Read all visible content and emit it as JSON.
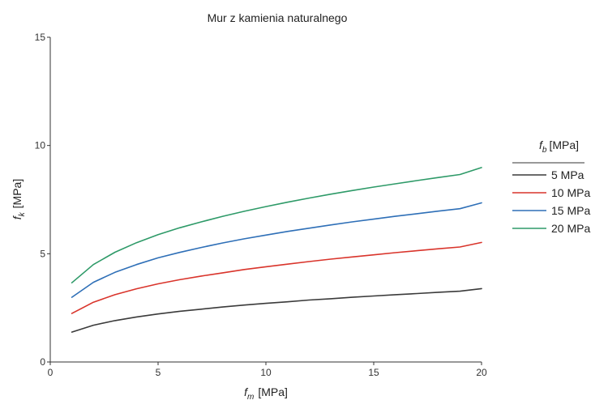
{
  "chart_data": {
    "type": "line",
    "title": "Mur z kamienia naturalnego",
    "xlabel": {
      "symbol": "f",
      "sub": "m",
      "unit": "[MPa]"
    },
    "ylabel": {
      "symbol": "f",
      "sub": "k",
      "unit": "[MPa]"
    },
    "xlim": [
      0,
      20
    ],
    "ylim": [
      0,
      15
    ],
    "xticks": [
      0,
      5,
      10,
      15,
      20
    ],
    "yticks": [
      0,
      5,
      10,
      15
    ],
    "grid": false,
    "legend": {
      "placement": "right",
      "title": {
        "symbol": "f",
        "sub": "b",
        "unit": "[MPa]"
      }
    },
    "x": [
      1,
      2,
      3,
      4,
      5,
      6,
      7,
      8,
      9,
      10,
      11,
      12,
      13,
      14,
      15,
      16,
      17,
      18,
      19,
      20
    ],
    "series": [
      {
        "name": "5 MPa",
        "color": "#3a3a3a",
        "values": [
          1.38,
          1.7,
          1.91,
          2.08,
          2.22,
          2.34,
          2.44,
          2.54,
          2.63,
          2.71,
          2.78,
          2.86,
          2.92,
          2.99,
          3.05,
          3.11,
          3.16,
          3.22,
          3.27,
          3.39
        ]
      },
      {
        "name": "10 MPa",
        "color": "#d9342b",
        "values": [
          2.24,
          2.76,
          3.11,
          3.38,
          3.61,
          3.8,
          3.97,
          4.12,
          4.27,
          4.4,
          4.52,
          4.64,
          4.75,
          4.85,
          4.95,
          5.05,
          5.14,
          5.23,
          5.31,
          5.52
        ]
      },
      {
        "name": "15 MPa",
        "color": "#2e6fb7",
        "values": [
          2.99,
          3.68,
          4.14,
          4.5,
          4.81,
          5.06,
          5.29,
          5.5,
          5.69,
          5.86,
          6.03,
          6.18,
          6.33,
          6.47,
          6.6,
          6.73,
          6.85,
          6.97,
          7.08,
          7.35
        ]
      },
      {
        "name": "20 MPa",
        "color": "#2e9a68",
        "values": [
          3.66,
          4.5,
          5.07,
          5.51,
          5.88,
          6.2,
          6.47,
          6.73,
          6.96,
          7.18,
          7.38,
          7.57,
          7.75,
          7.92,
          8.08,
          8.23,
          8.38,
          8.52,
          8.66,
          8.98
        ]
      }
    ]
  }
}
